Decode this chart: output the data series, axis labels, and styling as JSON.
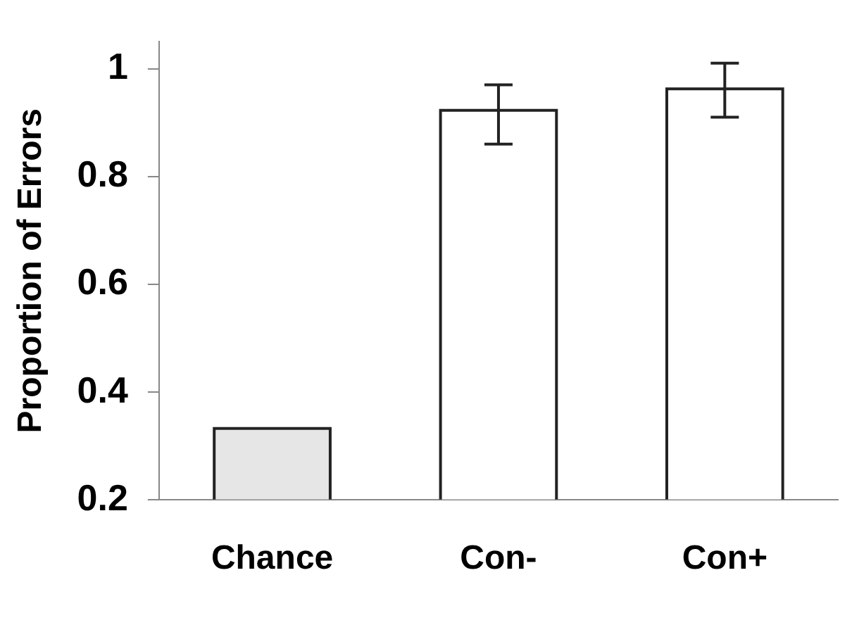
{
  "chart_data": {
    "type": "bar",
    "ylabel": "Proportion of Errors",
    "categories": [
      "Chance",
      "Con-",
      "Con+"
    ],
    "values": [
      0.33,
      0.92,
      0.96
    ],
    "colors": [
      "#e6e6e6",
      "#ffffff",
      "#ffffff"
    ],
    "errors": [
      null,
      [
        0.86,
        0.97
      ],
      [
        0.91,
        1.01
      ]
    ],
    "ylim": [
      0.2,
      1.05
    ],
    "yticks": [
      0.2,
      0.4,
      0.6,
      0.8,
      1
    ],
    "grid": false,
    "legend": false
  }
}
